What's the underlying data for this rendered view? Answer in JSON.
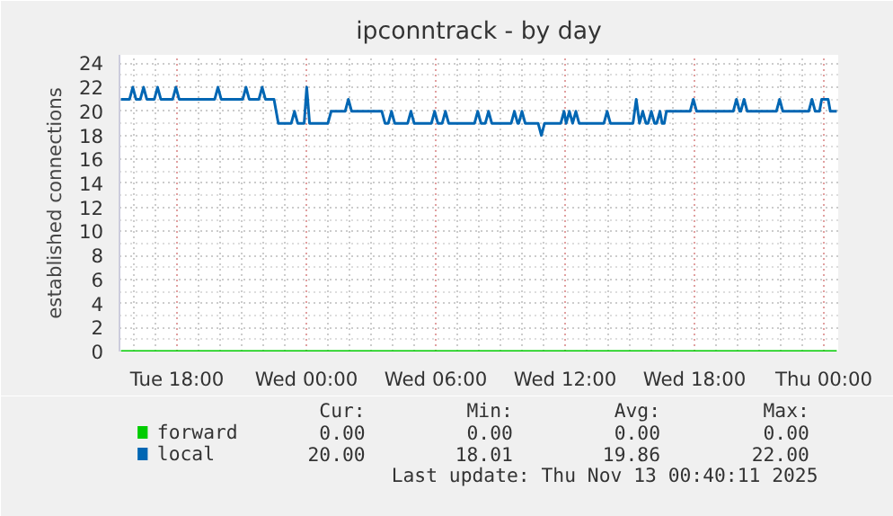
{
  "chart_data": {
    "type": "line",
    "title": "ipconntrack - by day",
    "ylabel": "established connections",
    "xlim": [
      "2025-11-11T15:20",
      "2025-11-13T00:40"
    ],
    "ylim": [
      0,
      24.7
    ],
    "xticks": [
      {
        "value": "2025-11-11T18:00",
        "label": "Tue 18:00"
      },
      {
        "value": "2025-11-12T00:00",
        "label": "Wed 00:00"
      },
      {
        "value": "2025-11-12T06:00",
        "label": "Wed 06:00"
      },
      {
        "value": "2025-11-12T12:00",
        "label": "Wed 12:00"
      },
      {
        "value": "2025-11-12T18:00",
        "label": "Wed 18:00"
      },
      {
        "value": "2025-11-13T00:00",
        "label": "Thu 00:00"
      }
    ],
    "yticks": [
      0,
      2,
      4,
      6,
      8,
      10,
      12,
      14,
      16,
      18,
      20,
      22,
      24
    ],
    "grid": true,
    "legend": "bottom left",
    "marker": "none",
    "line_style": "solid",
    "series": [
      {
        "name": "forward",
        "color": "#00cc00",
        "x": [
          "2025-11-11T15:24",
          "2025-11-13T00:36"
        ],
        "values": [
          0,
          0
        ]
      },
      {
        "name": "local",
        "color": "#0066b3",
        "x": [
          "2025-11-11T15:24",
          "2025-11-11T15:48",
          "2025-11-11T15:57",
          "2025-11-11T16:06",
          "2025-11-11T16:18",
          "2025-11-11T16:27",
          "2025-11-11T16:36",
          "2025-11-11T16:57",
          "2025-11-11T17:06",
          "2025-11-11T17:15",
          "2025-11-11T17:48",
          "2025-11-11T17:57",
          "2025-11-11T18:06",
          "2025-11-11T19:45",
          "2025-11-11T19:54",
          "2025-11-11T20:03",
          "2025-11-11T21:03",
          "2025-11-11T21:12",
          "2025-11-11T21:21",
          "2025-11-11T21:48",
          "2025-11-11T21:57",
          "2025-11-11T22:06",
          "2025-11-11T22:30",
          "2025-11-11T22:42",
          "2025-11-11T23:18",
          "2025-11-11T23:27",
          "2025-11-11T23:36",
          "2025-11-11T23:54",
          "2025-11-12T00:01",
          "2025-11-12T00:09",
          "2025-11-12T01:00",
          "2025-11-12T01:09",
          "2025-11-12T01:48",
          "2025-11-12T01:57",
          "2025-11-12T02:06",
          "2025-11-12T03:30",
          "2025-11-12T03:39",
          "2025-11-12T03:48",
          "2025-11-12T03:57",
          "2025-11-12T04:06",
          "2025-11-12T04:42",
          "2025-11-12T04:51",
          "2025-11-12T05:00",
          "2025-11-12T05:48",
          "2025-11-12T05:57",
          "2025-11-12T06:06",
          "2025-11-12T06:18",
          "2025-11-12T06:27",
          "2025-11-12T06:36",
          "2025-11-12T07:48",
          "2025-11-12T07:57",
          "2025-11-12T08:06",
          "2025-11-12T08:18",
          "2025-11-12T08:27",
          "2025-11-12T08:36",
          "2025-11-12T09:30",
          "2025-11-12T09:39",
          "2025-11-12T09:48",
          "2025-11-12T09:51",
          "2025-11-12T10:00",
          "2025-11-12T10:09",
          "2025-11-12T10:45",
          "2025-11-12T10:54",
          "2025-11-12T11:03",
          "2025-11-12T11:48",
          "2025-11-12T11:57",
          "2025-11-12T12:03",
          "2025-11-12T12:12",
          "2025-11-12T12:21",
          "2025-11-12T12:30",
          "2025-11-12T12:39",
          "2025-11-12T13:48",
          "2025-11-12T13:57",
          "2025-11-12T14:06",
          "2025-11-12T15:09",
          "2025-11-12T15:18",
          "2025-11-12T15:27",
          "2025-11-12T15:36",
          "2025-11-12T15:45",
          "2025-11-12T15:51",
          "2025-11-12T16:00",
          "2025-11-12T16:09",
          "2025-11-12T16:15",
          "2025-11-12T16:24",
          "2025-11-12T16:30",
          "2025-11-12T16:36",
          "2025-11-12T16:42",
          "2025-11-12T17:48",
          "2025-11-12T17:57",
          "2025-11-12T18:06",
          "2025-11-12T19:48",
          "2025-11-12T19:57",
          "2025-11-12T20:06",
          "2025-11-12T20:09",
          "2025-11-12T20:18",
          "2025-11-12T20:27",
          "2025-11-12T21:48",
          "2025-11-12T21:57",
          "2025-11-12T22:06",
          "2025-11-12T23:18",
          "2025-11-12T23:27",
          "2025-11-12T23:36",
          "2025-11-12T23:48",
          "2025-11-12T23:54",
          "2025-11-13T00:12",
          "2025-11-13T00:18",
          "2025-11-13T00:36"
        ],
        "values": [
          21,
          21,
          22,
          21,
          21,
          22,
          21,
          21,
          22,
          21,
          21,
          22,
          21,
          21,
          22,
          21,
          21,
          22,
          21,
          21,
          22,
          21,
          21,
          19,
          19,
          20,
          19,
          19,
          22,
          19,
          19,
          20,
          20,
          21,
          20,
          20,
          19,
          19,
          20,
          19,
          19,
          20,
          19,
          19,
          20,
          19,
          19,
          20,
          19,
          19,
          20,
          19,
          19,
          20,
          19,
          19,
          20,
          19,
          19,
          20,
          19,
          19,
          18,
          19,
          19,
          20,
          19,
          20,
          19,
          20,
          19,
          19,
          20,
          19,
          19,
          21,
          19,
          20,
          19,
          19,
          20,
          19,
          19,
          20,
          19,
          19,
          20,
          20,
          21,
          20,
          20,
          21,
          20,
          20,
          21,
          20,
          20,
          21,
          20,
          20,
          21,
          20,
          20,
          21,
          21,
          20,
          20
        ]
      }
    ],
    "annotations": [
      "Cur:",
      "Min:",
      "Avg:",
      "Max:",
      "0.00",
      "0.00",
      "0.00",
      "0.00",
      "20.00",
      "18.01",
      "19.86",
      "22.00",
      "Last update: Thu Nov 13 00:40:11 2025"
    ]
  }
}
